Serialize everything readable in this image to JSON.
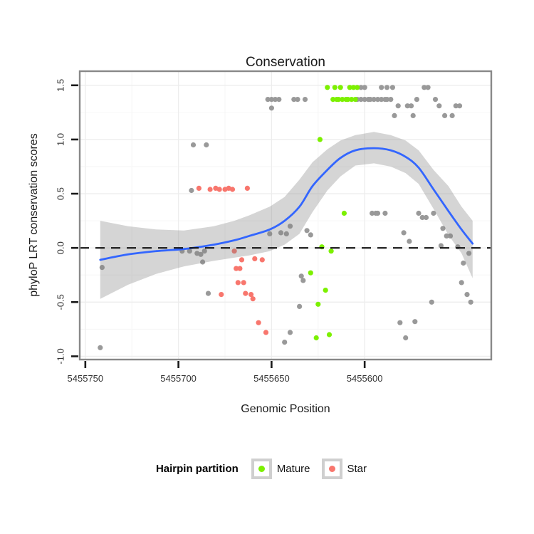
{
  "chart_data": {
    "type": "scatter",
    "title": "Conservation",
    "xlabel": "Genomic Position",
    "ylabel": "phyloP LRT conservation scores",
    "x_reversed": true,
    "xlim": [
      5455753,
      5455532
    ],
    "ylim": [
      -1.03,
      1.63
    ],
    "x_ticks": [
      {
        "v": 5455750,
        "label": "5455750"
      },
      {
        "v": 5455700,
        "label": "5455700"
      },
      {
        "v": 5455650,
        "label": "5455650"
      },
      {
        "v": 5455600,
        "label": "5455600"
      }
    ],
    "y_ticks": [
      {
        "v": 1.5,
        "label": "1.5"
      },
      {
        "v": 1.0,
        "label": "1.0"
      },
      {
        "v": 0.5,
        "label": "0.5"
      },
      {
        "v": 0.0,
        "label": "0.0"
      },
      {
        "v": -0.5,
        "label": "-0.5"
      },
      {
        "v": -1.0,
        "label": "-1.0"
      }
    ],
    "x_minor": [
      5455725,
      5455675,
      5455625
    ],
    "y_minor": [
      1.25,
      0.75,
      0.25,
      -0.25,
      -0.75
    ],
    "hline_y": 0,
    "grid": true,
    "legend_position": "bottom",
    "legend": {
      "title": "Hairpin partition",
      "entries": [
        {
          "name": "Mature",
          "color": "#7CF000"
        },
        {
          "name": "Star",
          "color": "#F8766D"
        }
      ]
    },
    "colors": {
      "other_points": "#999999",
      "smooth_line": "#3366FF",
      "band": "rgba(128,128,128,0.33)",
      "hline": "#111111",
      "panel_border": "#888888",
      "tick": "#1a1a1a",
      "grid_major": "#EDEDED",
      "grid_minor": "#F6F6F6"
    },
    "series": [
      {
        "name": "Unlabeled",
        "color": "#999999",
        "points": [
          [
            5455602,
            1.48
          ],
          [
            5455600,
            1.48
          ],
          [
            5455591,
            1.48
          ],
          [
            5455588,
            1.48
          ],
          [
            5455585,
            1.48
          ],
          [
            5455568,
            1.48
          ],
          [
            5455566,
            1.48
          ],
          [
            5455652,
            1.37
          ],
          [
            5455650,
            1.37
          ],
          [
            5455648,
            1.37
          ],
          [
            5455646,
            1.37
          ],
          [
            5455638,
            1.37
          ],
          [
            5455636,
            1.37
          ],
          [
            5455632,
            1.37
          ],
          [
            5455604,
            1.37
          ],
          [
            5455602,
            1.37
          ],
          [
            5455600,
            1.37
          ],
          [
            5455598,
            1.37
          ],
          [
            5455597,
            1.37
          ],
          [
            5455595,
            1.37
          ],
          [
            5455593,
            1.37
          ],
          [
            5455591,
            1.37
          ],
          [
            5455589,
            1.37
          ],
          [
            5455588,
            1.37
          ],
          [
            5455586,
            1.37
          ],
          [
            5455572,
            1.37
          ],
          [
            5455562,
            1.37
          ],
          [
            5455582,
            1.31
          ],
          [
            5455577,
            1.31
          ],
          [
            5455575,
            1.31
          ],
          [
            5455560,
            1.31
          ],
          [
            5455551,
            1.31
          ],
          [
            5455549,
            1.31
          ],
          [
            5455650,
            1.29
          ],
          [
            5455584,
            1.22
          ],
          [
            5455574,
            1.22
          ],
          [
            5455557,
            1.22
          ],
          [
            5455553,
            1.22
          ],
          [
            5455692,
            0.95
          ],
          [
            5455685,
            0.95
          ],
          [
            5455693,
            0.53
          ],
          [
            5455741,
            -0.18
          ],
          [
            5455742,
            -0.92
          ],
          [
            5455698,
            -0.03
          ],
          [
            5455694,
            -0.03
          ],
          [
            5455690,
            -0.05
          ],
          [
            5455688,
            -0.06
          ],
          [
            5455686,
            -0.03
          ],
          [
            5455687,
            -0.13
          ],
          [
            5455684,
            -0.42
          ],
          [
            5455651,
            0.13
          ],
          [
            5455645,
            0.14
          ],
          [
            5455642,
            0.13
          ],
          [
            5455640,
            0.2
          ],
          [
            5455631,
            0.16
          ],
          [
            5455629,
            0.12
          ],
          [
            5455634,
            -0.26
          ],
          [
            5455633,
            -0.3
          ],
          [
            5455635,
            -0.54
          ],
          [
            5455640,
            -0.78
          ],
          [
            5455643,
            -0.87
          ],
          [
            5455596,
            0.32
          ],
          [
            5455594,
            0.32
          ],
          [
            5455593,
            0.32
          ],
          [
            5455589,
            0.32
          ],
          [
            5455571,
            0.32
          ],
          [
            5455569,
            0.28
          ],
          [
            5455567,
            0.28
          ],
          [
            5455563,
            0.32
          ],
          [
            5455558,
            0.18
          ],
          [
            5455579,
            0.14
          ],
          [
            5455556,
            0.11
          ],
          [
            5455554,
            0.11
          ],
          [
            5455576,
            0.06
          ],
          [
            5455559,
            0.02
          ],
          [
            5455550,
            0.01
          ],
          [
            5455544,
            -0.05
          ],
          [
            5455547,
            -0.14
          ],
          [
            5455548,
            -0.32
          ],
          [
            5455545,
            -0.43
          ],
          [
            5455543,
            -0.5
          ],
          [
            5455564,
            -0.5
          ],
          [
            5455581,
            -0.69
          ],
          [
            5455573,
            -0.68
          ],
          [
            5455578,
            -0.83
          ]
        ]
      },
      {
        "name": "Star",
        "color": "#F8766D",
        "points": [
          [
            5455689,
            0.55
          ],
          [
            5455683,
            0.54
          ],
          [
            5455680,
            0.55
          ],
          [
            5455678,
            0.54
          ],
          [
            5455675,
            0.54
          ],
          [
            5455673,
            0.55
          ],
          [
            5455671,
            0.54
          ],
          [
            5455663,
            0.55
          ],
          [
            5455670,
            -0.03
          ],
          [
            5455666,
            -0.11
          ],
          [
            5455659,
            -0.1
          ],
          [
            5455655,
            -0.11
          ],
          [
            5455669,
            -0.19
          ],
          [
            5455667,
            -0.19
          ],
          [
            5455668,
            -0.32
          ],
          [
            5455665,
            -0.32
          ],
          [
            5455677,
            -0.43
          ],
          [
            5455664,
            -0.42
          ],
          [
            5455661,
            -0.43
          ],
          [
            5455660,
            -0.47
          ],
          [
            5455657,
            -0.69
          ],
          [
            5455653,
            -0.78
          ]
        ]
      },
      {
        "name": "Mature",
        "color": "#7CF000",
        "points": [
          [
            5455620,
            1.48
          ],
          [
            5455616,
            1.48
          ],
          [
            5455613,
            1.48
          ],
          [
            5455608,
            1.48
          ],
          [
            5455606,
            1.48
          ],
          [
            5455604,
            1.48
          ],
          [
            5455617,
            1.37
          ],
          [
            5455615,
            1.37
          ],
          [
            5455614,
            1.37
          ],
          [
            5455612,
            1.37
          ],
          [
            5455610,
            1.37
          ],
          [
            5455609,
            1.37
          ],
          [
            5455607,
            1.37
          ],
          [
            5455605,
            1.37
          ],
          [
            5455624,
            1.0
          ],
          [
            5455611,
            0.32
          ],
          [
            5455623,
            0.01
          ],
          [
            5455618,
            -0.03
          ],
          [
            5455629,
            -0.23
          ],
          [
            5455621,
            -0.39
          ],
          [
            5455625,
            -0.52
          ],
          [
            5455619,
            -0.8
          ],
          [
            5455626,
            -0.83
          ]
        ]
      }
    ],
    "smooth": {
      "line": [
        [
          5455742,
          -0.11
        ],
        [
          5455727,
          -0.06
        ],
        [
          5455712,
          -0.03
        ],
        [
          5455697,
          -0.01
        ],
        [
          5455681,
          0.03
        ],
        [
          5455670,
          0.07
        ],
        [
          5455662,
          0.11
        ],
        [
          5455651,
          0.17
        ],
        [
          5455643,
          0.25
        ],
        [
          5455635,
          0.38
        ],
        [
          5455628,
          0.57
        ],
        [
          5455620,
          0.72
        ],
        [
          5455613,
          0.83
        ],
        [
          5455605,
          0.9
        ],
        [
          5455595,
          0.92
        ],
        [
          5455586,
          0.9
        ],
        [
          5455578,
          0.84
        ],
        [
          5455571,
          0.74
        ],
        [
          5455563,
          0.54
        ],
        [
          5455555,
          0.34
        ],
        [
          5455548,
          0.17
        ],
        [
          5455542,
          0.04
        ]
      ],
      "upper": [
        [
          5455742,
          0.25
        ],
        [
          5455727,
          0.2
        ],
        [
          5455712,
          0.17
        ],
        [
          5455697,
          0.16
        ],
        [
          5455681,
          0.2
        ],
        [
          5455670,
          0.25
        ],
        [
          5455662,
          0.3
        ],
        [
          5455651,
          0.38
        ],
        [
          5455643,
          0.47
        ],
        [
          5455635,
          0.63
        ],
        [
          5455628,
          0.79
        ],
        [
          5455620,
          0.91
        ],
        [
          5455613,
          0.99
        ],
        [
          5455605,
          1.04
        ],
        [
          5455595,
          1.07
        ],
        [
          5455586,
          1.04
        ],
        [
          5455578,
          0.99
        ],
        [
          5455571,
          0.9
        ],
        [
          5455563,
          0.72
        ],
        [
          5455555,
          0.57
        ],
        [
          5455548,
          0.38
        ],
        [
          5455542,
          0.25
        ]
      ],
      "lower": [
        [
          5455742,
          -0.47
        ],
        [
          5455727,
          -0.34
        ],
        [
          5455712,
          -0.24
        ],
        [
          5455697,
          -0.17
        ],
        [
          5455681,
          -0.12
        ],
        [
          5455670,
          -0.09
        ],
        [
          5455662,
          -0.07
        ],
        [
          5455651,
          -0.03
        ],
        [
          5455643,
          0.03
        ],
        [
          5455635,
          0.13
        ],
        [
          5455628,
          0.33
        ],
        [
          5455620,
          0.53
        ],
        [
          5455613,
          0.66
        ],
        [
          5455605,
          0.76
        ],
        [
          5455595,
          0.78
        ],
        [
          5455586,
          0.75
        ],
        [
          5455578,
          0.69
        ],
        [
          5455571,
          0.59
        ],
        [
          5455563,
          0.36
        ],
        [
          5455555,
          0.12
        ],
        [
          5455548,
          -0.05
        ],
        [
          5455542,
          -0.28
        ]
      ]
    }
  }
}
